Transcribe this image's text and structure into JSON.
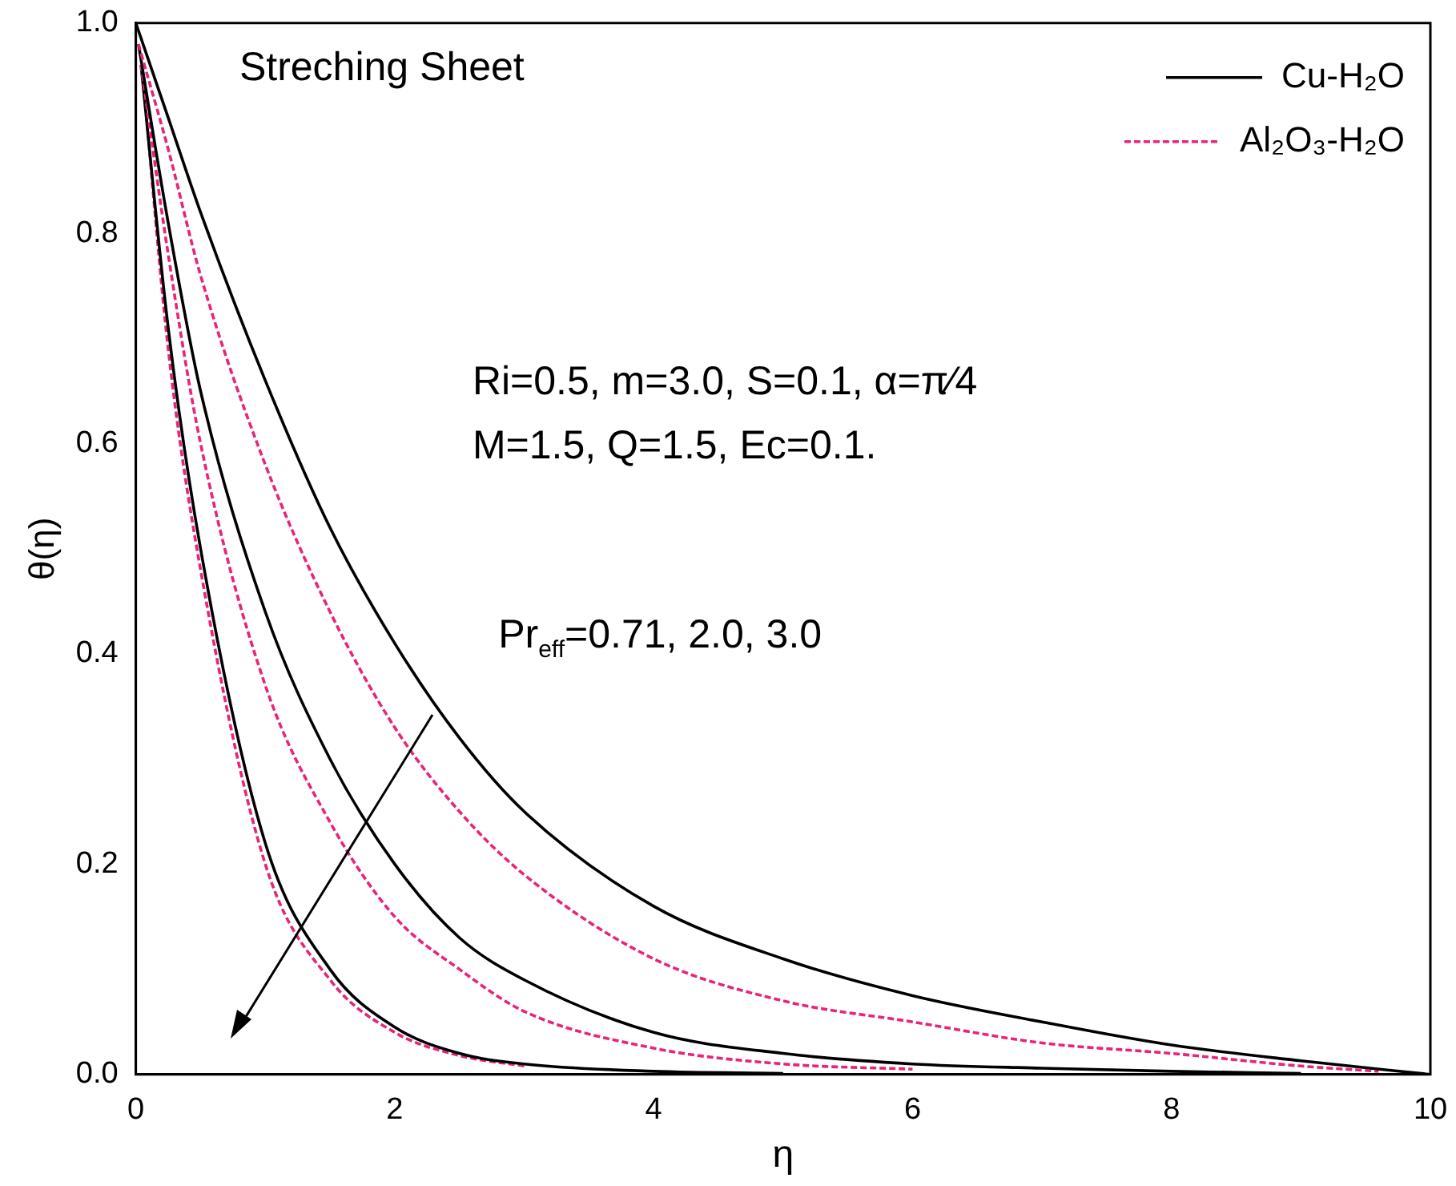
{
  "chart_data": {
    "type": "line",
    "xlabel": "η",
    "ylabel": "θ(η)",
    "xlim": [
      0,
      10
    ],
    "ylim": [
      0,
      1
    ],
    "xticks": [
      0,
      2,
      4,
      6,
      8,
      10
    ],
    "yticks": [
      {
        "value": 0,
        "label": "0.0"
      },
      0.2,
      0.4,
      0.6,
      0.8,
      {
        "value": 1,
        "label": "1.0"
      }
    ],
    "grid": false,
    "legend": "top right",
    "marker": "none",
    "annotations": [
      "Streching Sheet",
      "Ri=0.5, m=3.0, S=0.1, α=π⁄4",
      "M=1.5, Q=1.5, Ec=0.1.",
      "Pr$_{eff}$=0.71, 2.0, 3.0"
    ],
    "x": [
      0,
      0.25,
      0.5,
      1,
      1.5,
      2,
      2.5,
      3,
      4,
      5,
      6,
      7,
      8,
      9,
      10
    ],
    "series": [
      {
        "name": "Cu-H₂O",
        "color": "#000000",
        "line_style": "solid",
        "values": [
          1,
          0.91,
          0.82,
          0.66,
          0.52,
          0.41,
          0.32,
          0.25,
          0.16,
          0.11,
          0.075,
          0.05,
          0.028,
          0.013,
          0
        ]
      },
      {
        "name": "Al₂O₃-H₂O",
        "color": "#e8247a",
        "line_style": "dashed",
        "x": [
          0.02,
          0.25,
          0.5,
          1,
          1.5,
          2,
          2.5,
          3,
          4,
          5,
          6,
          7,
          8,
          9,
          9.6
        ],
        "values": [
          0.98,
          0.88,
          0.76,
          0.58,
          0.44,
          0.33,
          0.25,
          0.19,
          0.11,
          0.07,
          0.05,
          0.03,
          0.02,
          0.008,
          0.003
        ]
      },
      {
        "color": "#000000",
        "line_style": "solid",
        "x": [
          0.02,
          0.25,
          0.5,
          1,
          1.5,
          2,
          2.5,
          3,
          4,
          5,
          6,
          7,
          8,
          9
        ],
        "values": [
          0.98,
          0.81,
          0.65,
          0.44,
          0.3,
          0.2,
          0.13,
          0.09,
          0.04,
          0.02,
          0.01,
          0.006,
          0.003,
          0.001
        ]
      },
      {
        "color": "#e8247a",
        "line_style": "dashed",
        "x": [
          0.04,
          0.25,
          0.5,
          1,
          1.5,
          2,
          2.5,
          3,
          4,
          5,
          6
        ],
        "values": [
          0.96,
          0.78,
          0.6,
          0.37,
          0.24,
          0.15,
          0.1,
          0.06,
          0.025,
          0.01,
          0.005
        ]
      },
      {
        "color": "#000000",
        "line_style": "solid",
        "x": [
          0.04,
          0.25,
          0.5,
          1,
          1.5,
          2,
          2.5,
          3,
          4,
          5
        ],
        "values": [
          0.96,
          0.71,
          0.5,
          0.22,
          0.1,
          0.045,
          0.02,
          0.01,
          0.003,
          0.001
        ]
      },
      {
        "color": "#e8247a",
        "line_style": "dashed",
        "x": [
          0.06,
          0.25,
          0.5,
          1,
          1.5,
          2,
          2.5,
          3
        ],
        "values": [
          0.94,
          0.69,
          0.48,
          0.2,
          0.09,
          0.04,
          0.018,
          0.008
        ]
      }
    ]
  }
}
